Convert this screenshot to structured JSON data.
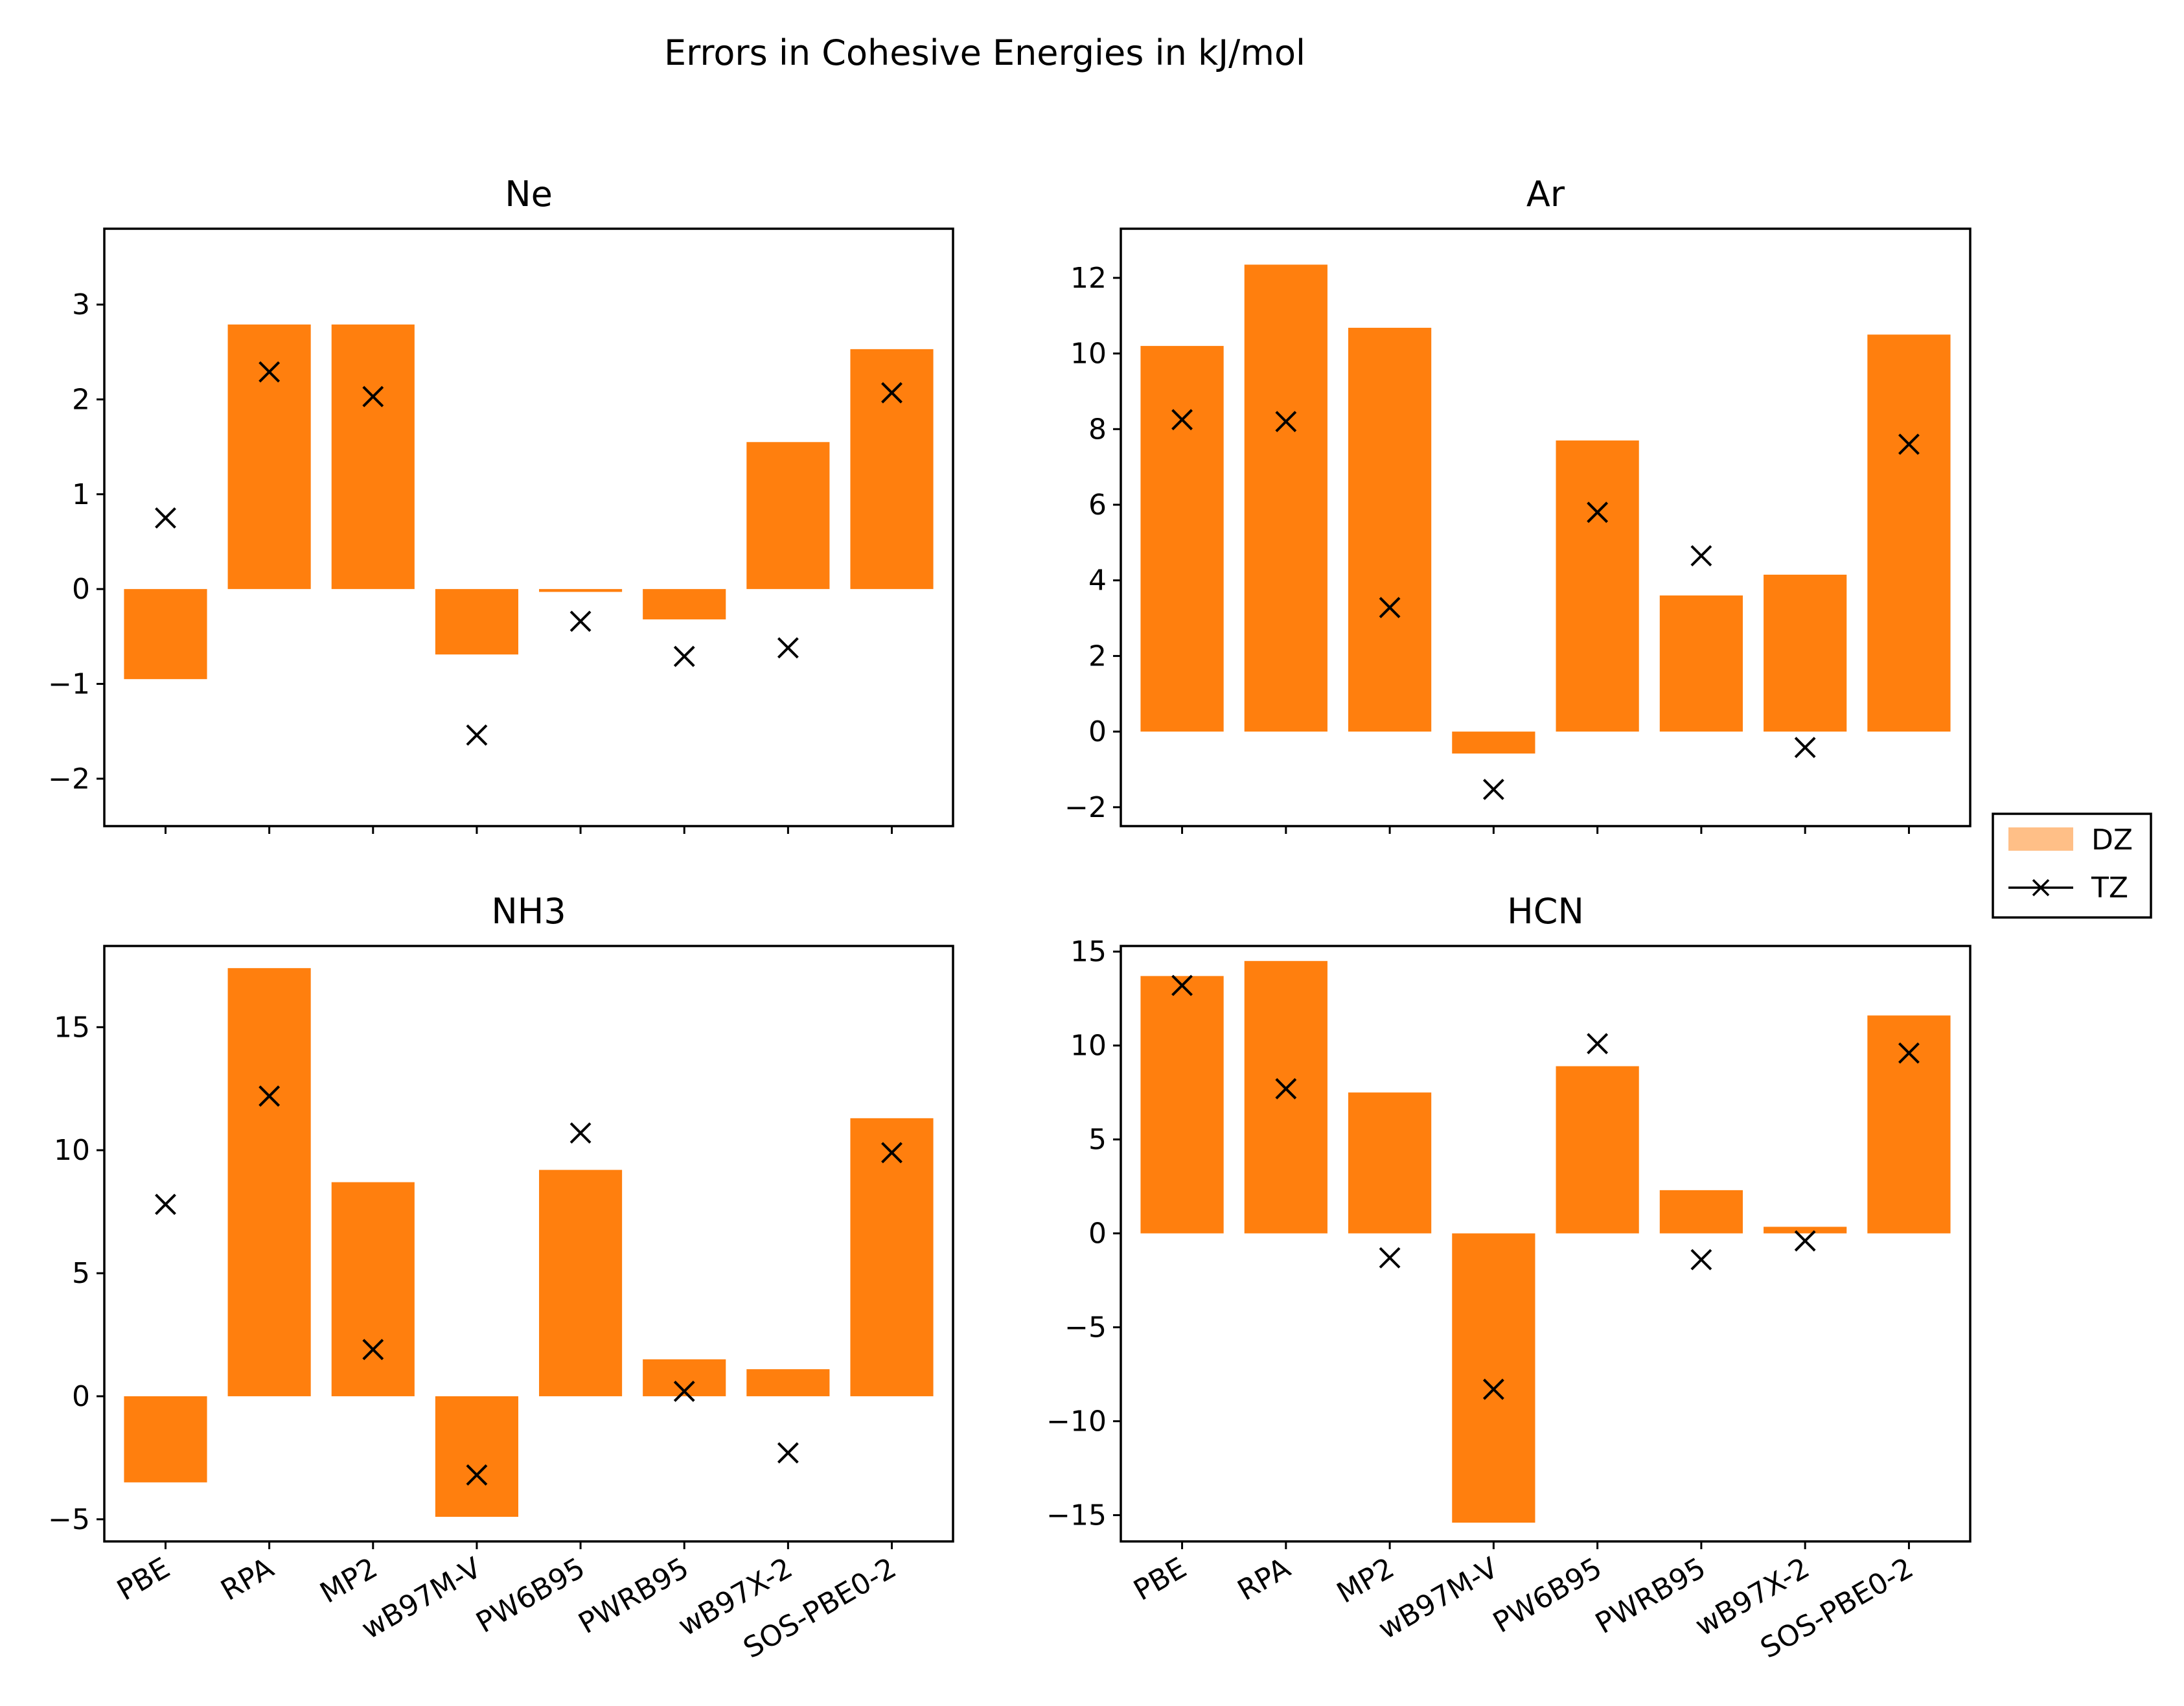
{
  "figure_title": "Errors in Cohesive Energies in kJ/mol",
  "colors": {
    "dz_bar": "#ff7f0e",
    "dz_legend": "#ffbf87",
    "tz_marker": "#000000",
    "axes": "#000000"
  },
  "legend": {
    "placement": "right-center",
    "entries": [
      {
        "label": "DZ",
        "kind": "bar"
      },
      {
        "label": "TZ",
        "kind": "line-x-marker"
      }
    ]
  },
  "chart_data": [
    {
      "type": "bar",
      "title": "Ne",
      "categories": [
        "PBE",
        "RPA",
        "MP2",
        "wB97M-V",
        "PW6B95",
        "PWRB95",
        "wB97X-2",
        "SOS-PBE0-2"
      ],
      "ylim": [
        -2.5,
        3.8
      ],
      "yticks": [
        -2,
        -1,
        0,
        1,
        2,
        3
      ],
      "ytick_labels": [
        "−2",
        "−1",
        "0",
        "1",
        "2",
        "3"
      ],
      "show_xtick_labels": false,
      "series": [
        {
          "name": "DZ",
          "kind": "bar",
          "values": [
            -0.95,
            2.79,
            2.79,
            -0.69,
            -0.03,
            -0.32,
            1.55,
            2.53
          ]
        },
        {
          "name": "TZ",
          "kind": "marker",
          "values": [
            0.75,
            2.29,
            2.03,
            -1.54,
            -0.34,
            -0.71,
            -0.62,
            2.07
          ]
        }
      ]
    },
    {
      "type": "bar",
      "title": "Ar",
      "categories": [
        "PBE",
        "RPA",
        "MP2",
        "wB97M-V",
        "PW6B95",
        "PWRB95",
        "wB97X-2",
        "SOS-PBE0-2"
      ],
      "ylim": [
        -2.5,
        13.3
      ],
      "yticks": [
        -2,
        0,
        2,
        4,
        6,
        8,
        10,
        12
      ],
      "ytick_labels": [
        "−2",
        "0",
        "2",
        "4",
        "6",
        "8",
        "10",
        "12"
      ],
      "show_xtick_labels": false,
      "series": [
        {
          "name": "DZ",
          "kind": "bar",
          "values": [
            10.2,
            12.35,
            10.68,
            -0.58,
            7.7,
            3.6,
            4.15,
            10.5
          ]
        },
        {
          "name": "TZ",
          "kind": "marker",
          "values": [
            8.25,
            8.2,
            3.28,
            -1.53,
            5.8,
            4.65,
            -0.42,
            7.6
          ]
        }
      ]
    },
    {
      "type": "bar",
      "title": "NH3",
      "categories": [
        "PBE",
        "RPA",
        "MP2",
        "wB97M-V",
        "PW6B95",
        "PWRB95",
        "wB97X-2",
        "SOS-PBE0-2"
      ],
      "ylim": [
        -5.9,
        18.3
      ],
      "yticks": [
        -5,
        0,
        5,
        10,
        15
      ],
      "ytick_labels": [
        "−5",
        "0",
        "5",
        "10",
        "15"
      ],
      "show_xtick_labels": true,
      "series": [
        {
          "name": "DZ",
          "kind": "bar",
          "values": [
            -3.5,
            17.4,
            8.7,
            -4.9,
            9.2,
            1.5,
            1.1,
            11.3
          ]
        },
        {
          "name": "TZ",
          "kind": "marker",
          "values": [
            7.8,
            12.2,
            1.9,
            -3.2,
            10.7,
            0.2,
            -2.3,
            9.9
          ]
        }
      ]
    },
    {
      "type": "bar",
      "title": "HCN",
      "categories": [
        "PBE",
        "RPA",
        "MP2",
        "wB97M-V",
        "PW6B95",
        "PWRB95",
        "wB97X-2",
        "SOS-PBE0-2"
      ],
      "ylim": [
        -16.4,
        15.3
      ],
      "yticks": [
        -15,
        -10,
        -5,
        0,
        5,
        10,
        15
      ],
      "ytick_labels": [
        "−15",
        "−10",
        "−5",
        "0",
        "5",
        "10",
        "15"
      ],
      "show_xtick_labels": true,
      "series": [
        {
          "name": "DZ",
          "kind": "bar",
          "values": [
            13.7,
            14.5,
            7.5,
            -15.4,
            8.9,
            2.3,
            0.35,
            11.6
          ]
        },
        {
          "name": "TZ",
          "kind": "marker",
          "values": [
            13.2,
            7.7,
            -1.3,
            -8.3,
            10.1,
            -1.4,
            -0.4,
            9.6
          ]
        }
      ]
    }
  ]
}
